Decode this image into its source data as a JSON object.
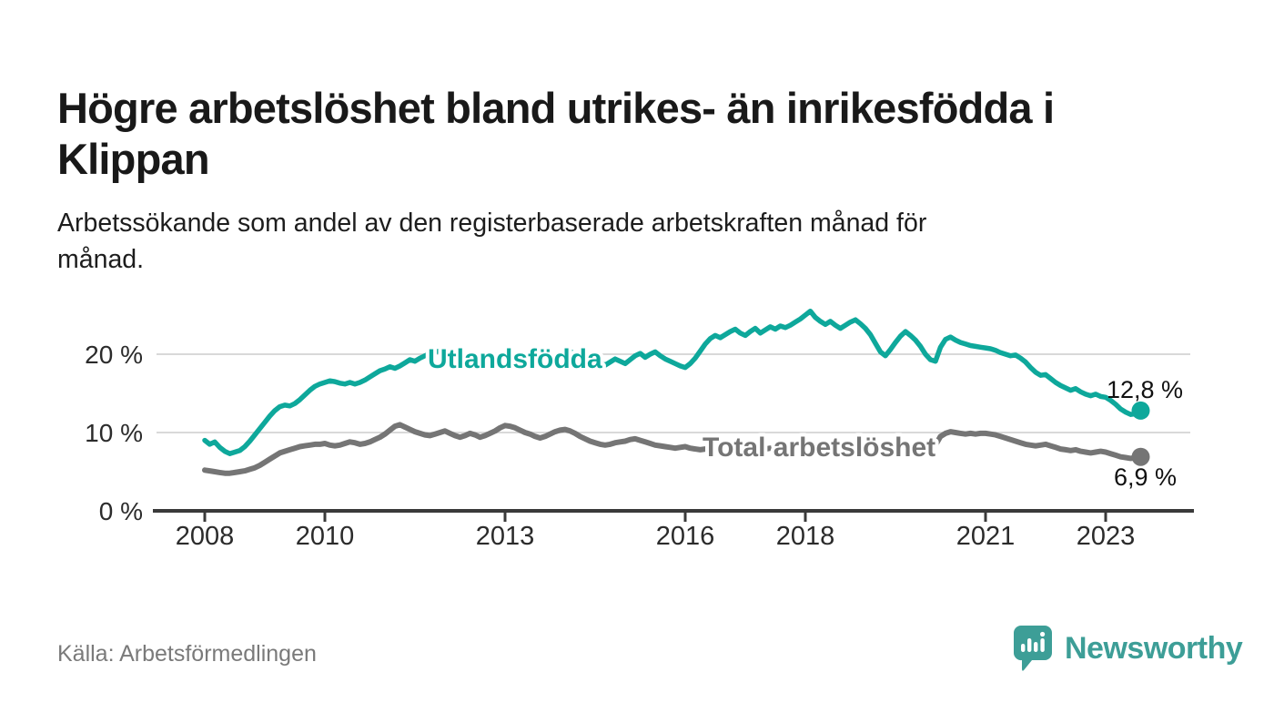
{
  "header": {
    "title_lines": [
      "Högre arbetslöshet bland utrikes- än inrikesfödda i",
      "Klippan"
    ],
    "subtitle_lines": [
      "Arbetssökande som andel av den registerbaserade arbetskraften månad för",
      "månad."
    ]
  },
  "footer": {
    "source": "Källa: Arbetsförmedlingen",
    "brand": "Newsworthy"
  },
  "colors": {
    "accent_teal": "#0ea89b",
    "series_gray": "#757575",
    "grid": "#d9d9d9",
    "axis": "#3a3a3a",
    "text_dark": "#191919",
    "text_gray": "#7a7a7a",
    "logo_teal": "#3d9e97"
  },
  "chart_data": {
    "type": "line",
    "title": "Högre arbetslöshet bland utrikes- än inrikesfödda i Klippan",
    "subtitle": "Arbetssökande som andel av den registerbaserade arbetskraften månad för månad.",
    "x_unit": "month",
    "x_range": [
      "2008-01",
      "2023-08"
    ],
    "ylim": [
      0,
      27
    ],
    "grid": "horizontal",
    "legend_position": "inline-labels",
    "x_ticks": [
      {
        "year": 2008,
        "label": "2008"
      },
      {
        "year": 2010,
        "label": "2010"
      },
      {
        "year": 2013,
        "label": "2013"
      },
      {
        "year": 2016,
        "label": "2016"
      },
      {
        "year": 2018,
        "label": "2018"
      },
      {
        "year": 2021,
        "label": "2021"
      },
      {
        "year": 2023,
        "label": "2023"
      }
    ],
    "y_ticks": [
      {
        "value": 20,
        "label": "20 %"
      },
      {
        "value": 10,
        "label": "10 %"
      },
      {
        "value": 0,
        "label": "0 %"
      }
    ],
    "series": [
      {
        "name": "Utlandsfödda",
        "color": "#0ea89b",
        "end_value": 12.8,
        "end_value_label": "12,8 %",
        "values": [
          9.0,
          8.5,
          8.8,
          8.1,
          7.6,
          7.3,
          7.5,
          7.7,
          8.2,
          8.9,
          9.7,
          10.5,
          11.3,
          12.1,
          12.8,
          13.3,
          13.5,
          13.4,
          13.7,
          14.2,
          14.8,
          15.4,
          15.9,
          16.2,
          16.4,
          16.6,
          16.5,
          16.3,
          16.2,
          16.4,
          16.2,
          16.4,
          16.7,
          17.1,
          17.5,
          17.9,
          18.1,
          18.4,
          18.2,
          18.5,
          18.9,
          19.3,
          19.1,
          19.5,
          19.8,
          20.1,
          20.3,
          20.4,
          20.1,
          19.6,
          19.1,
          19.0,
          19.4,
          19.7,
          19.3,
          19.1,
          19.4,
          19.7,
          19.9,
          19.6,
          19.4,
          19.7,
          19.3,
          18.9,
          19.2,
          19.5,
          19.7,
          20.0,
          20.2,
          19.9,
          19.6,
          19.9,
          20.1,
          20.4,
          19.9,
          19.5,
          19.2,
          19.6,
          19.3,
          18.9,
          18.6,
          19.0,
          19.4,
          19.1,
          18.8,
          19.3,
          19.8,
          20.1,
          19.6,
          20.0,
          20.3,
          19.8,
          19.4,
          19.1,
          18.8,
          18.5,
          18.3,
          18.8,
          19.5,
          20.4,
          21.3,
          22.0,
          22.4,
          22.1,
          22.5,
          22.9,
          23.2,
          22.7,
          22.4,
          22.9,
          23.3,
          22.7,
          23.1,
          23.5,
          23.2,
          23.6,
          23.4,
          23.7,
          24.1,
          24.5,
          25.0,
          25.5,
          24.7,
          24.2,
          23.8,
          24.2,
          23.7,
          23.3,
          23.7,
          24.1,
          24.4,
          23.9,
          23.3,
          22.5,
          21.4,
          20.3,
          19.8,
          20.6,
          21.5,
          22.3,
          22.9,
          22.4,
          21.8,
          21.0,
          20.0,
          19.3,
          19.1,
          20.9,
          21.9,
          22.2,
          21.8,
          21.5,
          21.3,
          21.1,
          21.0,
          20.9,
          20.8,
          20.7,
          20.5,
          20.2,
          20.0,
          19.8,
          19.9,
          19.5,
          19.0,
          18.3,
          17.7,
          17.3,
          17.4,
          16.9,
          16.4,
          16.0,
          15.7,
          15.4,
          15.6,
          15.2,
          14.9,
          14.7,
          14.9,
          14.6,
          14.5,
          14.1,
          13.6,
          13.0,
          12.6,
          12.3,
          12.4,
          12.8
        ]
      },
      {
        "name": "Total arbetslöshet",
        "color": "#757575",
        "end_value": 6.9,
        "end_value_label": "6,9 %",
        "values": [
          5.2,
          5.1,
          5.0,
          4.9,
          4.8,
          4.8,
          4.9,
          5.0,
          5.1,
          5.3,
          5.5,
          5.8,
          6.2,
          6.6,
          7.0,
          7.4,
          7.6,
          7.8,
          8.0,
          8.2,
          8.3,
          8.4,
          8.5,
          8.5,
          8.6,
          8.4,
          8.3,
          8.4,
          8.6,
          8.8,
          8.7,
          8.5,
          8.6,
          8.8,
          9.1,
          9.4,
          9.8,
          10.3,
          10.8,
          11.0,
          10.7,
          10.4,
          10.1,
          9.9,
          9.7,
          9.6,
          9.8,
          10.0,
          10.2,
          9.9,
          9.6,
          9.4,
          9.6,
          9.9,
          9.7,
          9.4,
          9.6,
          9.9,
          10.2,
          10.6,
          10.9,
          10.8,
          10.6,
          10.3,
          10.0,
          9.8,
          9.5,
          9.3,
          9.5,
          9.8,
          10.1,
          10.3,
          10.4,
          10.2,
          9.9,
          9.5,
          9.2,
          8.9,
          8.7,
          8.5,
          8.4,
          8.5,
          8.7,
          8.8,
          8.9,
          9.1,
          9.2,
          9.0,
          8.8,
          8.6,
          8.4,
          8.3,
          8.2,
          8.1,
          8.0,
          8.1,
          8.2,
          8.0,
          7.9,
          7.8,
          7.9,
          8.0,
          7.9,
          7.8,
          7.7,
          7.8,
          7.9,
          8.0,
          8.1,
          8.0,
          7.9,
          7.8,
          7.9,
          8.0,
          7.9,
          7.8,
          7.7,
          7.8,
          7.9,
          7.8,
          7.7,
          7.6,
          7.5,
          7.4,
          7.5,
          7.6,
          7.5,
          7.4,
          7.3,
          7.4,
          7.5,
          7.6,
          7.5,
          7.4,
          7.3,
          7.2,
          7.3,
          7.4,
          7.5,
          7.6,
          7.5,
          7.6,
          7.7,
          7.8,
          7.9,
          8.0,
          8.4,
          9.5,
          9.9,
          10.1,
          10.0,
          9.9,
          9.8,
          9.9,
          9.8,
          9.9,
          9.9,
          9.8,
          9.7,
          9.5,
          9.3,
          9.1,
          8.9,
          8.7,
          8.5,
          8.4,
          8.3,
          8.4,
          8.5,
          8.3,
          8.1,
          7.9,
          7.8,
          7.7,
          7.8,
          7.6,
          7.5,
          7.4,
          7.5,
          7.6,
          7.5,
          7.3,
          7.1,
          6.9,
          6.8,
          6.7,
          6.8,
          6.9
        ]
      }
    ]
  }
}
